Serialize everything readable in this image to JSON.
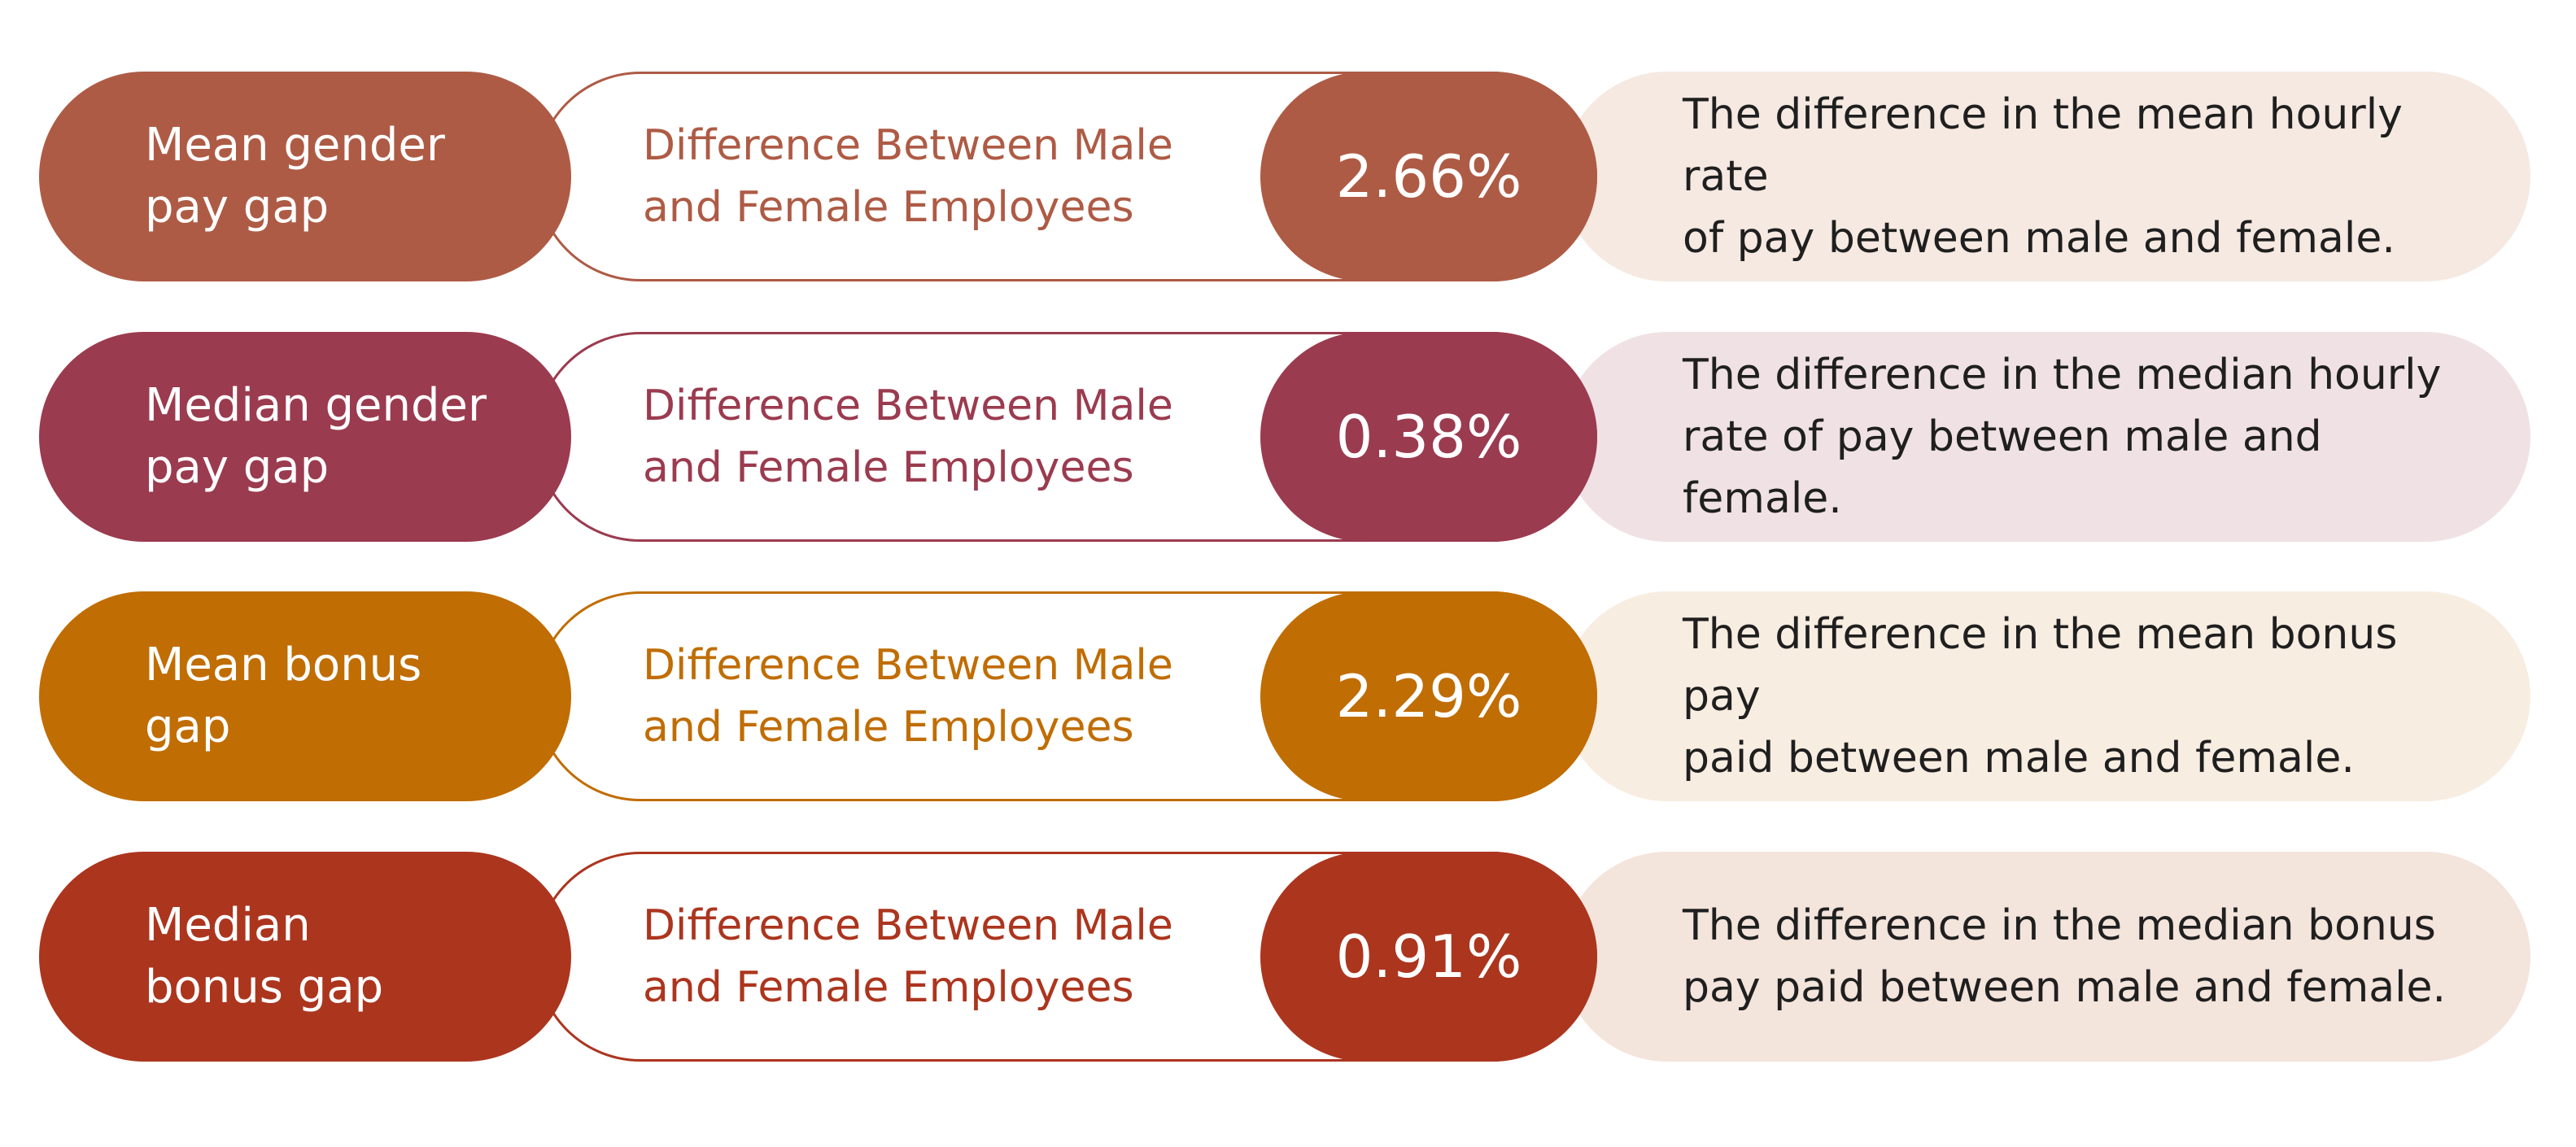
{
  "rows": [
    {
      "label": "Mean gender\npay gap",
      "difference_label": "Difference Between Male\nand Female Employees",
      "value": "2.66%",
      "description": "The difference in the mean hourly rate\nof pay between male and female.",
      "color": "#ae5b45",
      "tint": "#f5e9e2"
    },
    {
      "label": "Median gender\npay gap",
      "difference_label": "Difference Between Male\nand Female Employees",
      "value": "0.38%",
      "description": "The difference in the median hourly\nrate of pay between male and female.",
      "color": "#9b3b4f",
      "tint": "#f0e2e4"
    },
    {
      "label": "Mean bonus\ngap",
      "difference_label": "Difference Between Male\nand Female Employees",
      "value": "2.29%",
      "description": "The difference in the mean bonus pay\npaid between male and female.",
      "color": "#c06d03",
      "tint": "#f8ede1"
    },
    {
      "label": "Median\nbonus gap",
      "difference_label": "Difference Between Male\nand Female Employees",
      "value": "0.91%",
      "description": "The difference in the median bonus\npay paid between male and female.",
      "color": "#ac351e",
      "tint": "#f3e4dc"
    }
  ]
}
